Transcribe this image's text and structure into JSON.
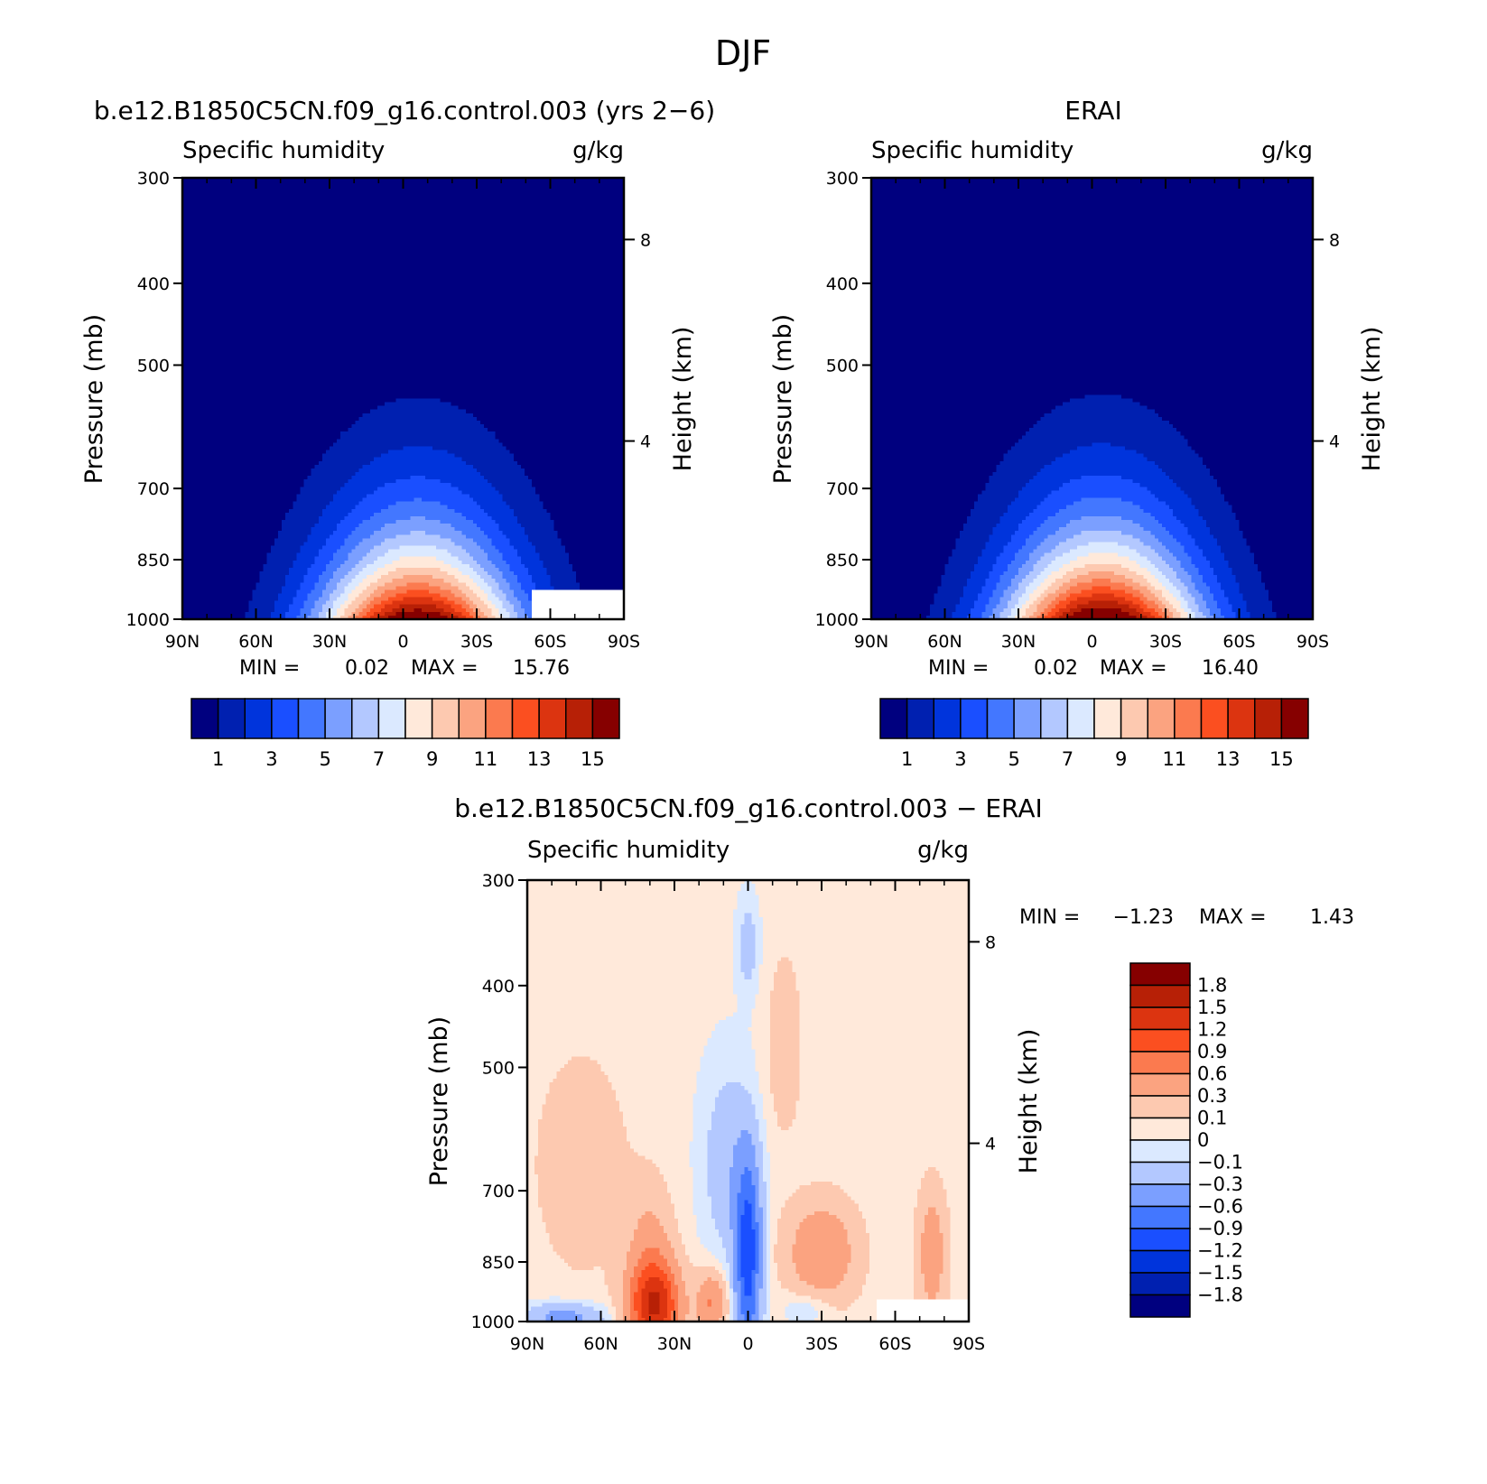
{
  "figure": {
    "title": "DJF"
  },
  "chart_data": [
    {
      "type": "heatmap",
      "title": "b.e12.B1850C5CN.f09_g16.control.003 (yrs 2−6)",
      "left_subtitle": "Specific humidity",
      "right_subtitle": "g/kg",
      "xlabel": "",
      "ylabel": "Pressure (mb)",
      "ylabel_right": "Height (km)",
      "x_ticks": [
        "90N",
        "60N",
        "30N",
        "0",
        "30S",
        "60S",
        "90S"
      ],
      "y_ticks": [
        "300",
        "400",
        "500",
        "700",
        "850",
        "1000"
      ],
      "y_right_ticks": [
        "8",
        "4"
      ],
      "stats": {
        "min_label": "MIN =",
        "min": "0.02",
        "max_label": "MAX =",
        "max": "15.76"
      },
      "colorbar_labels": [
        "1",
        "3",
        "5",
        "7",
        "9",
        "11",
        "13",
        "15"
      ],
      "levels": [
        1,
        2,
        3,
        4,
        5,
        6,
        7,
        8,
        9,
        10,
        11,
        12,
        13,
        14,
        15
      ],
      "peak": 15.76,
      "center_lat": -6,
      "width_lat": 40,
      "top_pressure": 390,
      "missing_region": {
        "lat_min": -90,
        "lat_max": -52,
        "p_min": 925,
        "p_max": 1000
      }
    },
    {
      "type": "heatmap",
      "title": "ERAI",
      "left_subtitle": "Specific humidity",
      "right_subtitle": "g/kg",
      "xlabel": "",
      "ylabel": "Pressure (mb)",
      "ylabel_right": "Height (km)",
      "x_ticks": [
        "90N",
        "60N",
        "30N",
        "0",
        "30S",
        "60S",
        "90S"
      ],
      "y_ticks": [
        "300",
        "400",
        "500",
        "700",
        "850",
        "1000"
      ],
      "y_right_ticks": [
        "8",
        "4"
      ],
      "stats": {
        "min_label": "MIN =",
        "min": "0.02",
        "max_label": "MAX =",
        "max": "16.40"
      },
      "colorbar_labels": [
        "1",
        "3",
        "5",
        "7",
        "9",
        "11",
        "13",
        "15"
      ],
      "levels": [
        1,
        2,
        3,
        4,
        5,
        6,
        7,
        8,
        9,
        10,
        11,
        12,
        13,
        14,
        15
      ],
      "peak": 16.4,
      "center_lat": -4,
      "width_lat": 40,
      "top_pressure": 380,
      "missing_region": null
    },
    {
      "type": "heatmap",
      "title": "b.e12.B1850C5CN.f09_g16.control.003 − ERAI",
      "left_subtitle": "Specific humidity",
      "right_subtitle": "g/kg",
      "xlabel": "",
      "ylabel": "Pressure (mb)",
      "ylabel_right": "Height (km)",
      "x_ticks": [
        "90N",
        "60N",
        "30N",
        "0",
        "30S",
        "60S",
        "90S"
      ],
      "y_ticks": [
        "300",
        "400",
        "500",
        "700",
        "850",
        "1000"
      ],
      "y_right_ticks": [
        "8",
        "4"
      ],
      "stats": {
        "min_label": "MIN =",
        "min": "−1.23",
        "max_label": "MAX =",
        "max": "1.43"
      },
      "colorbar_labels": [
        "1.8",
        "1.5",
        "1.2",
        "0.9",
        "0.6",
        "0.3",
        "0.1",
        "0",
        "−0.1",
        "−0.3",
        "−0.6",
        "−0.9",
        "−1.2",
        "−1.5",
        "−1.8"
      ],
      "levels": [
        -1.8,
        -1.5,
        -1.2,
        -0.9,
        -0.6,
        -0.3,
        -0.1,
        0,
        0.1,
        0.3,
        0.6,
        0.9,
        1.2,
        1.5,
        1.8
      ],
      "missing_region": {
        "lat_min": -90,
        "lat_max": -52,
        "p_min": 940,
        "p_max": 1000
      }
    }
  ],
  "colors": {
    "abs_palette": [
      "#00007f",
      "#0020b0",
      "#0034dc",
      "#1a4fff",
      "#4377ff",
      "#7b9fff",
      "#b3c8ff",
      "#dbe9ff",
      "#ffe9da",
      "#fdc9b0",
      "#fba380",
      "#fb7a4f",
      "#fb4f20",
      "#dc3410",
      "#b72006",
      "#860000"
    ],
    "diff_palette": [
      "#00007f",
      "#0020b0",
      "#0034dc",
      "#1a4fff",
      "#4377ff",
      "#7b9fff",
      "#b3c8ff",
      "#dbe9ff",
      "#ffe9da",
      "#fdc9b0",
      "#fba380",
      "#fb7a4f",
      "#fb4f20",
      "#dc3410",
      "#b72006",
      "#860000"
    ]
  }
}
